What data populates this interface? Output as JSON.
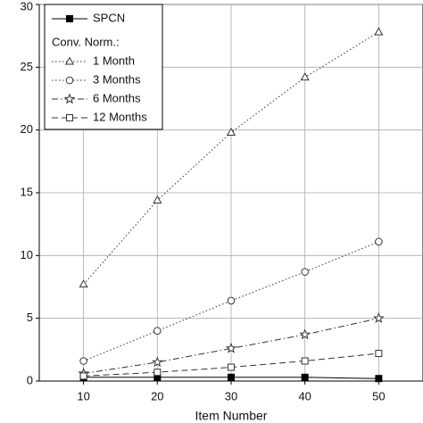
{
  "chart_data": {
    "type": "line",
    "xlabel": "Item Number",
    "xlim": [
      4,
      56
    ],
    "xticks": [
      10,
      20,
      30,
      40,
      50
    ],
    "ylim": [
      0,
      30
    ],
    "yticks": [
      0,
      5,
      10,
      15,
      20,
      25,
      30
    ],
    "grid": true,
    "legend": "upper left",
    "legend_subtitle": "Conv. Norm.:",
    "x": [
      10,
      20,
      30,
      40,
      50
    ],
    "series": [
      {
        "name": "SPCN",
        "color": "#000000",
        "marker": "filled-square",
        "dash": "solid",
        "values": [
          0.3,
          0.3,
          0.3,
          0.3,
          0.2
        ]
      },
      {
        "name": "1 Month",
        "color": "#333333",
        "marker": "triangle",
        "dash": "dotted",
        "values": [
          7.7,
          14.4,
          19.8,
          24.2,
          27.8
        ]
      },
      {
        "name": "3 Months",
        "color": "#333333",
        "marker": "circle",
        "dash": "dotted",
        "values": [
          1.6,
          4.0,
          6.4,
          8.7,
          11.1
        ]
      },
      {
        "name": "6 Months",
        "color": "#333333",
        "marker": "star",
        "dash": "dashdot",
        "values": [
          0.6,
          1.5,
          2.6,
          3.7,
          5.0
        ]
      },
      {
        "name": "12 Months",
        "color": "#333333",
        "marker": "square",
        "dash": "dashed",
        "values": [
          0.4,
          0.7,
          1.1,
          1.6,
          2.2
        ]
      }
    ]
  }
}
